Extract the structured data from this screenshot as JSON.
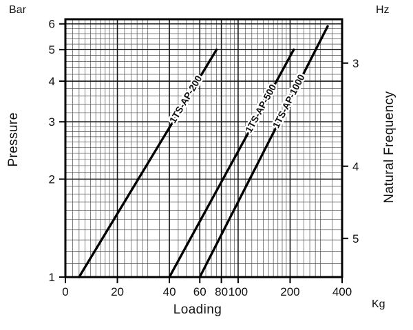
{
  "axes": {
    "left_unit": "Bar",
    "left_title": "Pressure",
    "right_unit": "Hz",
    "right_title": "Natural Frequency",
    "bottom_title": "Loading",
    "bottom_unit": "Kg"
  },
  "colors": {
    "line": "#000000",
    "grid_minor": "#4d4d4d",
    "grid_major": "#161616",
    "border": "#000000",
    "text": "#111111"
  },
  "chart_data": {
    "type": "line",
    "title": "",
    "xlabel": "Loading",
    "x_unit": "Kg",
    "ylabel": "Pressure",
    "y_unit": "Bar",
    "y2label": "Natural Frequency",
    "y2_unit": "Hz",
    "x_scale": "log",
    "y_scale": "log",
    "grid_on": true,
    "x_range": [
      10,
      400
    ],
    "y_range": [
      1,
      6.2
    ],
    "x_tick_labels": [
      "0",
      "20",
      "40",
      "60",
      "80",
      "100",
      "200",
      "400"
    ],
    "y_tick_labels": [
      "1",
      "2",
      "3",
      "4",
      "5",
      "6"
    ],
    "y2_ticks": [
      {
        "label": "3",
        "pos": 0.17
      },
      {
        "label": "4",
        "pos": 0.57
      },
      {
        "label": "5",
        "pos": 0.85
      }
    ],
    "grid": {
      "x_minor_per_decade": [
        1.1,
        1.2,
        1.3,
        1.4,
        1.5,
        1.6,
        1.7,
        1.8,
        1.9,
        2.2,
        2.4,
        2.6,
        2.8,
        3,
        3.5,
        4.5,
        5,
        5.5,
        6.5,
        7,
        7.5,
        8.5,
        9,
        9.5
      ],
      "x_major": [
        20,
        40,
        60,
        80,
        100,
        200,
        400
      ],
      "y_major": [
        1,
        2,
        3,
        4,
        5,
        6
      ]
    },
    "series": [
      {
        "name": "1TS-AP-200",
        "points": [
          [
            12,
            1.0
          ],
          [
            75,
            5.0
          ]
        ],
        "label_t": 0.78
      },
      {
        "name": "1TS-AP-500",
        "points": [
          [
            40,
            1.0
          ],
          [
            210,
            5.0
          ]
        ],
        "label_t": 0.74
      },
      {
        "name": "1TS-AP-1000",
        "points": [
          [
            60,
            1.0
          ],
          [
            330,
            5.9
          ]
        ],
        "label_t": 0.7
      }
    ]
  }
}
